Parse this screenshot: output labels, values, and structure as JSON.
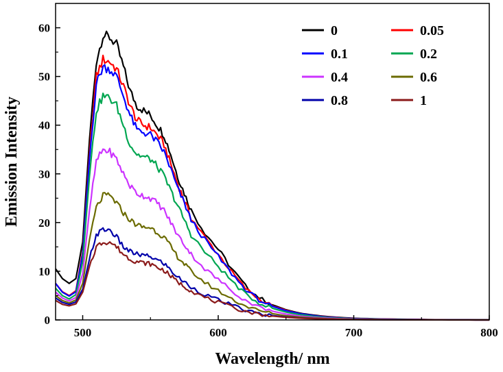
{
  "chart_data": {
    "type": "line",
    "xlabel": "Wavelength/ nm",
    "ylabel": "Emission Intensity",
    "xlim": [
      480,
      800
    ],
    "ylim": [
      0,
      65
    ],
    "xticks": [
      "500",
      "600",
      "700",
      "800"
    ],
    "yticks": [
      "0",
      "10",
      "20",
      "30",
      "40",
      "50",
      "60"
    ],
    "grid": false,
    "legend_position": "top-right",
    "x": [
      480,
      485,
      490,
      495,
      500,
      505,
      510,
      515,
      520,
      525,
      530,
      535,
      540,
      545,
      550,
      555,
      560,
      565,
      570,
      575,
      580,
      590,
      600,
      610,
      620,
      630,
      640,
      650,
      660,
      670,
      680,
      690,
      700,
      720,
      740,
      760,
      780,
      800
    ],
    "series": [
      {
        "name": "0",
        "color": "#000000",
        "values": [
          10.5,
          8.5,
          7.5,
          8.5,
          16,
          37,
          53,
          58.5,
          58,
          56.5,
          52,
          47,
          44,
          43,
          42,
          40,
          38,
          34,
          29.5,
          26,
          22.5,
          18,
          14.5,
          10.5,
          7,
          4.6,
          3.1,
          2.1,
          1.4,
          1,
          0.7,
          0.5,
          0.35,
          0.2,
          0.12,
          0.06,
          0.03,
          0.01
        ]
      },
      {
        "name": "0.05",
        "color": "#ff0000",
        "values": [
          7.5,
          5.8,
          5,
          6,
          14,
          34,
          50,
          53.5,
          53,
          51.5,
          48,
          44,
          41,
          40,
          39.5,
          38,
          36,
          32,
          28,
          24.5,
          21,
          17,
          13.5,
          9.8,
          6.5,
          4.3,
          2.9,
          2,
          1.3,
          0.9,
          0.65,
          0.45,
          0.3,
          0.17,
          0.1,
          0.05,
          0.02,
          0.01
        ]
      },
      {
        "name": "0.1",
        "color": "#0000ff",
        "values": [
          7.5,
          5.7,
          4.9,
          5.8,
          13.5,
          33,
          48.5,
          52,
          51.5,
          50,
          46,
          42,
          39,
          38.5,
          38,
          36.5,
          34.5,
          31,
          27,
          24,
          20.5,
          16.5,
          13,
          9.5,
          6.3,
          4.1,
          2.8,
          1.9,
          1.3,
          0.9,
          0.6,
          0.42,
          0.28,
          0.16,
          0.09,
          0.05,
          0.02,
          0.01
        ]
      },
      {
        "name": "0.2",
        "color": "#00a651",
        "values": [
          6.5,
          5,
          4.3,
          5.2,
          12,
          29.5,
          43,
          46,
          45.5,
          44,
          40,
          36,
          34,
          33.5,
          33,
          31.5,
          29.5,
          26.5,
          23.5,
          20.5,
          17.5,
          14,
          11,
          8,
          5.3,
          3.5,
          2.4,
          1.6,
          1.1,
          0.75,
          0.5,
          0.35,
          0.23,
          0.13,
          0.07,
          0.04,
          0.02,
          0.01
        ]
      },
      {
        "name": "0.4",
        "color": "#cc33ff",
        "values": [
          5.7,
          4.5,
          3.9,
          4.6,
          9.5,
          22.5,
          32.5,
          35,
          34.5,
          33,
          30,
          27.5,
          26,
          25.5,
          25,
          24,
          22.5,
          20,
          17.5,
          15.5,
          13.5,
          10.5,
          8.3,
          6,
          4,
          2.7,
          1.8,
          1.2,
          0.8,
          0.55,
          0.38,
          0.26,
          0.17,
          0.1,
          0.05,
          0.03,
          0.01,
          0
        ]
      },
      {
        "name": "0.6",
        "color": "#6b6b00",
        "values": [
          5,
          4,
          3.5,
          4.1,
          7.5,
          16.5,
          23,
          25.5,
          25.5,
          24,
          22,
          20.5,
          19.5,
          19,
          19,
          18,
          17,
          15,
          13,
          11.5,
          10,
          7.7,
          6,
          4.3,
          2.9,
          1.9,
          1.3,
          0.85,
          0.58,
          0.4,
          0.27,
          0.18,
          0.12,
          0.07,
          0.04,
          0.02,
          0.01,
          0
        ]
      },
      {
        "name": "0.8",
        "color": "#0000aa",
        "values": [
          4.5,
          3.6,
          3.2,
          3.7,
          6.3,
          12.5,
          17.5,
          18.5,
          18.5,
          17,
          15,
          14,
          13.5,
          13.2,
          13,
          12.3,
          11.6,
          10.2,
          8.8,
          7.8,
          6.8,
          5.2,
          4.1,
          3,
          2,
          1.3,
          0.9,
          0.6,
          0.4,
          0.28,
          0.19,
          0.13,
          0.09,
          0.05,
          0.03,
          0.01,
          0.01,
          0
        ]
      },
      {
        "name": "1",
        "color": "#8b1a1a",
        "values": [
          4,
          3.2,
          2.9,
          3.3,
          5.7,
          11,
          15,
          16,
          16,
          15,
          13.5,
          12.5,
          12,
          11.7,
          11.5,
          10.8,
          10.2,
          9,
          7.8,
          6.9,
          6,
          4.6,
          3.6,
          2.6,
          1.8,
          1.2,
          0.8,
          0.53,
          0.36,
          0.25,
          0.17,
          0.12,
          0.08,
          0.04,
          0.02,
          0.01,
          0,
          0
        ]
      }
    ]
  }
}
